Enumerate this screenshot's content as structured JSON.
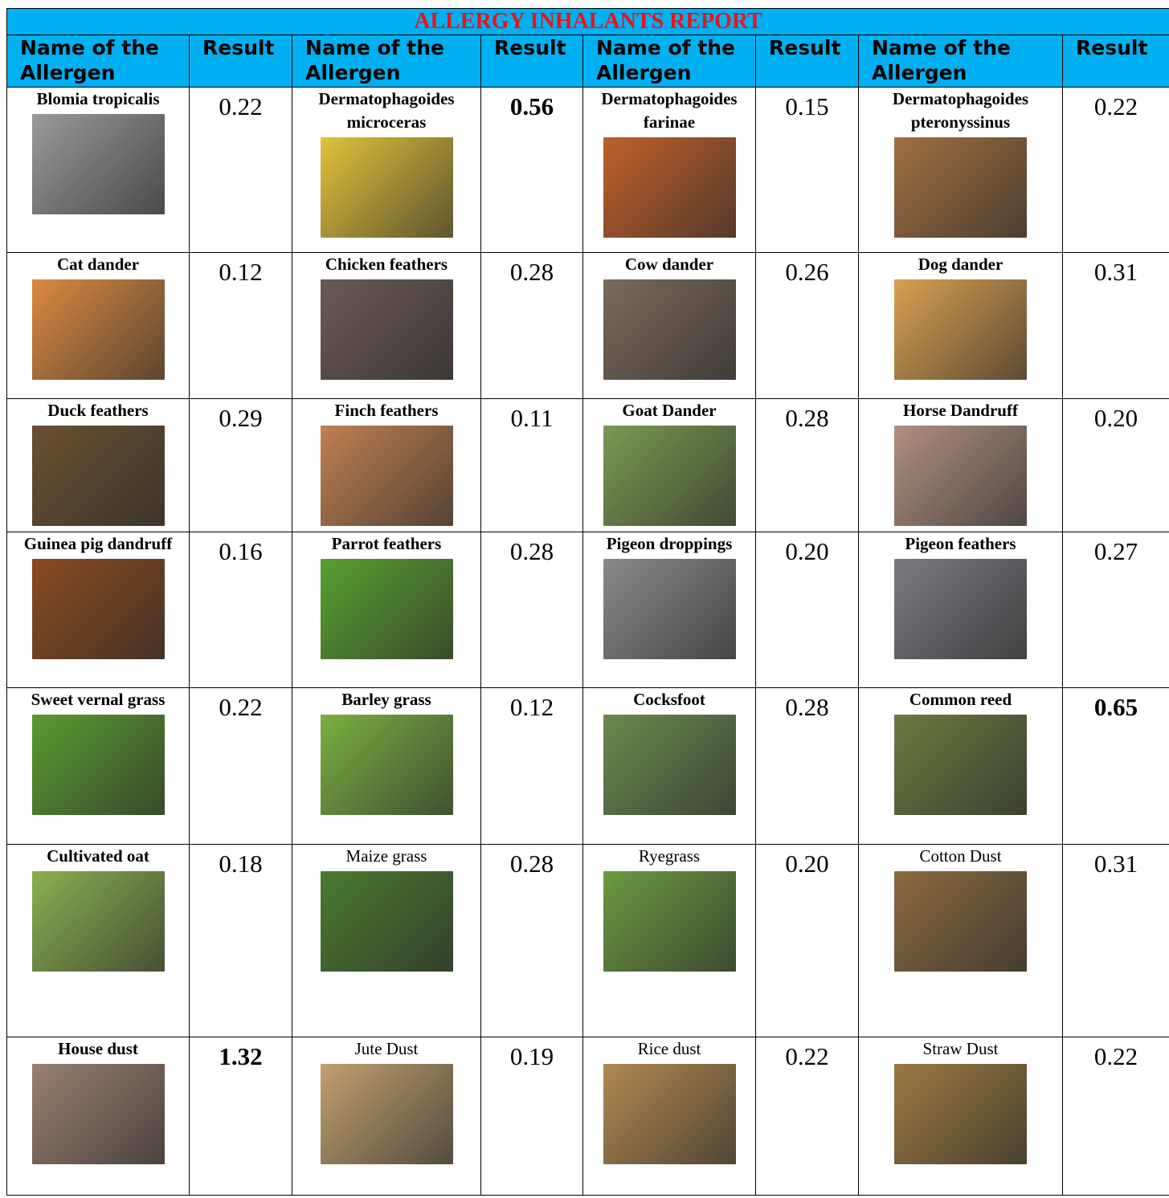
{
  "title": "ALLERGY  INHALANTS REPORT",
  "header": [
    "Name of the Allergen",
    "Result",
    "Name of the Allergen",
    "Result",
    "Name of the Allergen",
    "Result",
    "Name of the Allergen",
    "Result"
  ],
  "rows": [
    [
      {
        "name": "Blomia tropicalis",
        "result": "0.22"
      },
      {
        "name": "Dermatophagoides microceras",
        "result": "0.56",
        "result_bold": true
      },
      {
        "name": "Dermatophagoides farinae",
        "result": "0.15"
      },
      {
        "name": "Dermatophagoides pteronyssinus",
        "result": "0.22"
      }
    ],
    [
      {
        "name": "Cat dander",
        "result": "0.12"
      },
      {
        "name": "Chicken feathers",
        "result": "0.28"
      },
      {
        "name": "Cow  dander",
        "result": "0.26"
      },
      {
        "name": "Dog dander",
        "result": "0.31"
      }
    ],
    [
      {
        "name": "Duck  feathers",
        "result": "0.29"
      },
      {
        "name": "Finch  feathers",
        "result": "0.11"
      },
      {
        "name": "Goat  Dander",
        "result": "0.28"
      },
      {
        "name": "Horse Dandruff",
        "result": "0.20"
      }
    ],
    [
      {
        "name": "Guinea pig dandruff",
        "result": "0.16"
      },
      {
        "name": "Parrot  feathers",
        "result": "0.28"
      },
      {
        "name": "Pigeon droppings",
        "result": "0.20"
      },
      {
        "name": "Pigeon  feathers",
        "result": "0.27"
      }
    ],
    [
      {
        "name": "Sweet vernal grass",
        "result": "0.22"
      },
      {
        "name": "Barley grass",
        "result": "0.12"
      },
      {
        "name": "Cocksfoot",
        "result": "0.28"
      },
      {
        "name": "Common  reed",
        "result": "0.65",
        "result_bold": true
      }
    ],
    [
      {
        "name": "Cultivated oat",
        "result": "0.18"
      },
      {
        "name": "Maize grass",
        "result": "0.28",
        "name_bold": false
      },
      {
        "name": "Ryegrass",
        "result": "0.20",
        "name_bold": false
      },
      {
        "name": "Cotton Dust",
        "result": "0.31",
        "name_bold": false
      }
    ],
    [
      {
        "name": "House dust",
        "result": "1.32",
        "result_bold": true
      },
      {
        "name": "Jute  Dust",
        "result": "0.19",
        "name_bold": false
      },
      {
        "name": "Rice dust",
        "result": "0.22",
        "name_bold": false
      },
      {
        "name": "Straw  Dust",
        "result": "0.22",
        "name_bold": false
      }
    ]
  ]
}
